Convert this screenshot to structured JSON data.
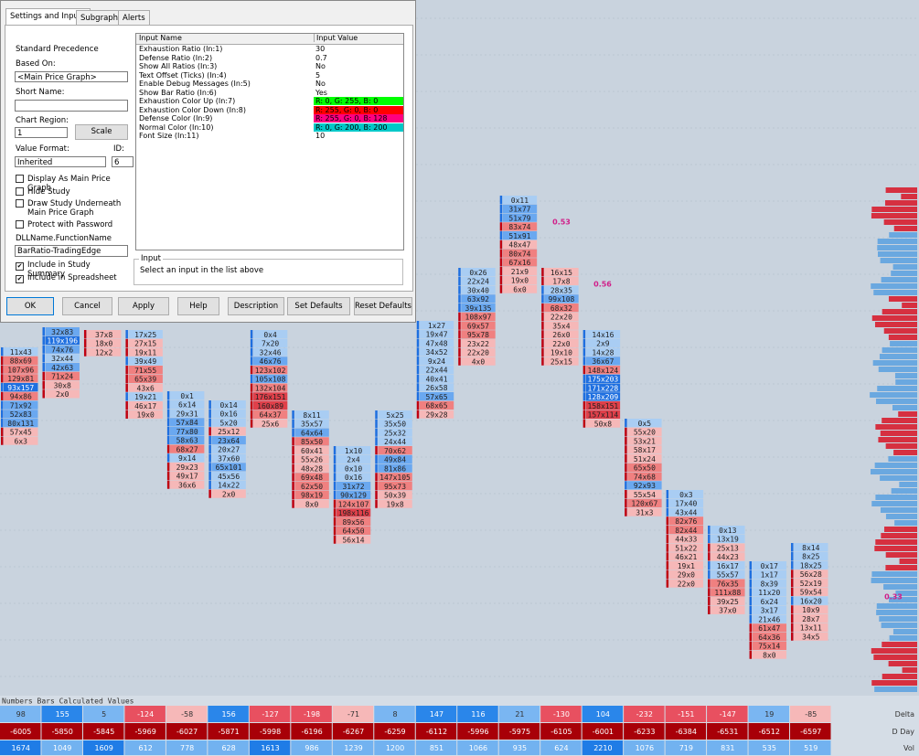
{
  "dialog": {
    "tabs": [
      "Settings and Inputs",
      "Subgraphs",
      "Alerts"
    ],
    "precedence": "Standard Precedence",
    "based_on_label": "Based On:",
    "based_on": "<Main Price Graph>",
    "short_name_label": "Short Name:",
    "chart_region_label": "Chart Region:",
    "chart_region": "1",
    "scale": "Scale",
    "value_format_label": "Value Format:",
    "value_format": "Inherited",
    "id_label": "ID:",
    "id": "6",
    "checkboxes": [
      {
        "label": "Display As Main Price Graph",
        "checked": false
      },
      {
        "label": "Hide Study",
        "checked": false
      },
      {
        "label": "Draw Study Underneath Main Price Graph",
        "checked": false
      },
      {
        "label": "Protect with Password",
        "checked": false
      }
    ],
    "dll_label": "DLLName.FunctionName",
    "dll": "BarRatio-TradingEdge",
    "checkboxes2": [
      {
        "label": "Include in Study Summary",
        "checked": true
      },
      {
        "label": "Include in Spreadsheet",
        "checked": true
      }
    ],
    "inputs_header": [
      "Input Name",
      "Input Value"
    ],
    "inputs": [
      {
        "name": "Exhaustion Ratio  (In:1)",
        "value": "30"
      },
      {
        "name": "Defense Ratio  (In:2)",
        "value": "0.7"
      },
      {
        "name": "Show All Ratios  (In:3)",
        "value": "No"
      },
      {
        "name": "Text Offset (Ticks)  (In:4)",
        "value": "5"
      },
      {
        "name": "Enable Debug Messages  (In:5)",
        "value": "No"
      },
      {
        "name": "Show Bar Ratio  (In:6)",
        "value": "Yes"
      },
      {
        "name": "Exhaustion Color Up  (In:7)",
        "value": "R: 0, G: 255, B: 0",
        "color": "#00ff00"
      },
      {
        "name": "Exhaustion Color Down  (In:8)",
        "value": "R: 255, G: 0, B: 0",
        "color": "#ff0000"
      },
      {
        "name": "Defense Color  (In:9)",
        "value": "R: 255, G: 0, B: 128",
        "color": "#ff0080"
      },
      {
        "name": "Normal Color  (In:10)",
        "value": "R: 0, G: 200, B: 200",
        "color": "#00c8c8"
      },
      {
        "name": "Font Size  (In:11)",
        "value": "10"
      }
    ],
    "input_group": "Input",
    "input_hint": "Select an input in the list above",
    "buttons": [
      "OK",
      "Cancel",
      "Apply",
      "Help",
      "Description",
      "Set Defaults",
      "Reset Defaults"
    ]
  },
  "footprint": {
    "columns": [
      [
        "11x43",
        "88x69",
        "107x96",
        "129x81",
        "93x157",
        "94x86",
        "71x92",
        "52x83",
        "80x131",
        "57x45",
        "6x3"
      ],
      [
        "32x83",
        "119x196",
        "74x76",
        "32x44",
        "42x63",
        "71x24",
        "30x8",
        "2x0"
      ],
      [
        "37x8",
        "18x0",
        "12x2"
      ],
      [
        "17x25",
        "27x15",
        "19x11",
        "39x49",
        "71x55",
        "65x39",
        "43x6",
        "19x21",
        "46x17",
        "19x0"
      ],
      [
        "0x1",
        "6x14",
        "29x31",
        "57x84",
        "77x80",
        "58x63",
        "68x27",
        "9x14",
        "29x23",
        "49x17",
        "36x6"
      ],
      [
        "0x14",
        "0x16",
        "5x20",
        "25x12",
        "23x64",
        "20x27",
        "37x60",
        "65x101",
        "45x56",
        "14x22",
        "2x0"
      ],
      [
        "0x4",
        "7x20",
        "32x46",
        "46x76",
        "123x102",
        "105x108",
        "132x104",
        "176x151",
        "160x89",
        "64x37",
        "25x6"
      ],
      [
        "8x11",
        "35x57",
        "64x64",
        "85x50",
        "60x41",
        "55x26",
        "48x28",
        "69x48",
        "62x50",
        "98x19",
        "8x0"
      ],
      [
        "1x10",
        "2x4",
        "0x10",
        "0x16",
        "31x72",
        "90x129",
        "124x107",
        "198x116",
        "89x56",
        "64x50",
        "56x14"
      ],
      [
        "5x25",
        "35x50",
        "25x32",
        "24x44",
        "70x62",
        "49x84",
        "81x86",
        "147x105",
        "95x73",
        "50x39",
        "19x8"
      ],
      [
        "1x27",
        "19x47",
        "47x48",
        "34x52",
        "9x24",
        "22x44",
        "40x41",
        "26x58",
        "57x65",
        "68x65",
        "29x28"
      ],
      [
        "0x26",
        "22x24",
        "30x40",
        "63x92",
        "39x135",
        "108x97",
        "69x57",
        "95x78",
        "23x22",
        "22x20",
        "4x0"
      ],
      [
        "0x11",
        "31x77",
        "51x79",
        "83x74",
        "51x91",
        "48x47",
        "80x74",
        "67x16",
        "21x9",
        "19x0",
        "6x0"
      ],
      [
        "16x15",
        "17x8",
        "28x35",
        "99x108",
        "68x32",
        "22x20",
        "35x4",
        "26x0",
        "22x0",
        "19x10",
        "25x15"
      ],
      [
        "14x16",
        "2x9",
        "14x28",
        "36x67",
        "148x124",
        "175x203",
        "171x228",
        "128x209",
        "158x151",
        "157x114",
        "50x8"
      ],
      [
        "0x5",
        "55x20",
        "53x21",
        "58x17",
        "51x24",
        "65x50",
        "74x68",
        "92x93",
        "55x54",
        "120x67",
        "31x3"
      ],
      [
        "0x3",
        "17x40",
        "43x44",
        "82x76",
        "82x44",
        "44x33",
        "51x22",
        "46x21",
        "19x1",
        "29x0",
        "22x0"
      ],
      [
        "0x13",
        "13x19",
        "25x13",
        "44x23",
        "16x17",
        "55x57",
        "76x35",
        "111x88",
        "39x25",
        "37x0"
      ],
      [
        "0x17",
        "1x17",
        "8x39",
        "11x20",
        "6x24",
        "3x17",
        "21x46",
        "61x47",
        "64x36",
        "75x14",
        "8x0"
      ],
      [
        "8x14",
        "8x25",
        "18x25",
        "56x28",
        "52x19",
        "59x54",
        "16x20",
        "10x9",
        "28x7",
        "13x11",
        "34x5"
      ]
    ],
    "ratios": [
      "0.53",
      "0.56",
      "0.33"
    ]
  },
  "table": {
    "header": "Numbers Bars Calculated Values",
    "rows": [
      {
        "label": "Delta",
        "values": [
          98,
          155,
          5,
          -124,
          -58,
          156,
          -127,
          -198,
          -71,
          8,
          147,
          116,
          21,
          -130,
          104,
          -232,
          -151,
          -147,
          19,
          -85
        ]
      },
      {
        "label": "D Day",
        "values": [
          -6005,
          -5850,
          -5845,
          -5969,
          -6027,
          -5871,
          -5998,
          -6196,
          -6267,
          -6259,
          -6112,
          -5996,
          -5975,
          -6105,
          -6001,
          -6233,
          -6384,
          -6531,
          -6512,
          -6597
        ]
      },
      {
        "label": "Vol",
        "values": [
          1674,
          1049,
          1609,
          612,
          778,
          628,
          1613,
          986,
          1239,
          1200,
          851,
          1066,
          935,
          624,
          2210,
          1076,
          719,
          831,
          535,
          519
        ]
      }
    ]
  }
}
